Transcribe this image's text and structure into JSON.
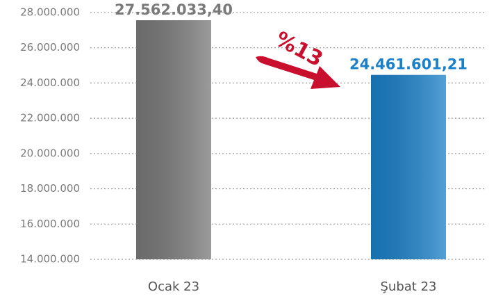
{
  "chart_data": {
    "type": "bar",
    "categories": [
      "Ocak 23",
      "Şubat 23"
    ],
    "values": [
      27562033.4,
      24461601.21
    ],
    "value_labels": [
      "27.562.033,40",
      "24.461.601,21"
    ],
    "colors": [
      "#7a7a7a",
      "#1a80c8"
    ],
    "ylim": [
      14000000,
      28000000
    ],
    "yticks": [
      {
        "value": 14000000,
        "label": "14.000.000"
      },
      {
        "value": 16000000,
        "label": "16.000.000"
      },
      {
        "value": 18000000,
        "label": "18.000.000"
      },
      {
        "value": 20000000,
        "label": "20.000.000"
      },
      {
        "value": 22000000,
        "label": "22.000.000"
      },
      {
        "value": 24000000,
        "label": "24.000.000"
      },
      {
        "value": 26000000,
        "label": "26.000.000"
      },
      {
        "value": 28000000,
        "label": "28.000.000"
      }
    ],
    "grid": true,
    "annotation": "%13",
    "annotation_color": "#c8102e"
  }
}
